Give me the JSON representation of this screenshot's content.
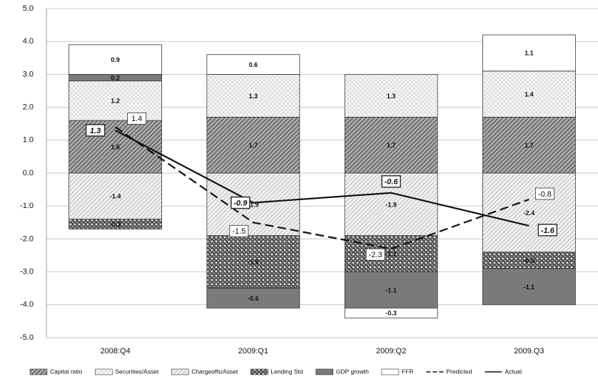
{
  "chart_data": {
    "type": "bar",
    "stacked": true,
    "categories": [
      "2008:Q4",
      "2009:Q1",
      "2009:Q2",
      "2009.Q3"
    ],
    "ylim": [
      -5,
      5
    ],
    "yticks": [
      {
        "value": -5,
        "label": "-5.0"
      },
      {
        "value": -4,
        "label": "-4.0"
      },
      {
        "value": -3,
        "label": "-3.0"
      },
      {
        "value": -2,
        "label": "-2.0"
      },
      {
        "value": -1,
        "label": "-1.0"
      },
      {
        "value": 0,
        "label": "0.0"
      },
      {
        "value": 1,
        "label": "1.0"
      },
      {
        "value": 2,
        "label": "2.0"
      },
      {
        "value": 3,
        "label": "3.0"
      },
      {
        "value": 4,
        "label": "4.0"
      },
      {
        "value": 5,
        "label": "5.0"
      }
    ],
    "grid": true,
    "series": [
      {
        "name": "Capital ratio",
        "color": "#6e6e6e",
        "pattern": "diag-dark",
        "values": [
          1.6,
          1.7,
          1.7,
          1.7
        ]
      },
      {
        "name": "Securities/Asset",
        "color": "#bdbdbd",
        "pattern": "dots",
        "values": [
          1.2,
          1.3,
          1.3,
          1.4
        ]
      },
      {
        "name": "Chargeoffs/Asset",
        "color": "#c4c4c4",
        "pattern": "diag-light",
        "values": [
          -1.4,
          -1.9,
          -1.9,
          -2.4
        ]
      },
      {
        "name": "Lending Std",
        "color": "#555555",
        "pattern": "cross",
        "values": [
          -0.3,
          -1.6,
          -1.1,
          -0.5
        ]
      },
      {
        "name": "GDP growth",
        "color": "#7a7a7a",
        "pattern": "solid",
        "values": [
          0.2,
          -0.6,
          -1.1,
          -1.1
        ]
      },
      {
        "name": "FFR",
        "color": "#ffffff",
        "pattern": "solid",
        "values": [
          0.9,
          0.6,
          -0.3,
          1.1
        ]
      }
    ],
    "lines": [
      {
        "name": "Predicted",
        "color": "#111111",
        "dash": true,
        "values": [
          1.4,
          -1.5,
          -2.3,
          -0.8
        ]
      },
      {
        "name": "Actual",
        "color": "#111111",
        "dash": false,
        "values": [
          1.3,
          -0.9,
          -0.6,
          -1.6
        ]
      }
    ]
  }
}
